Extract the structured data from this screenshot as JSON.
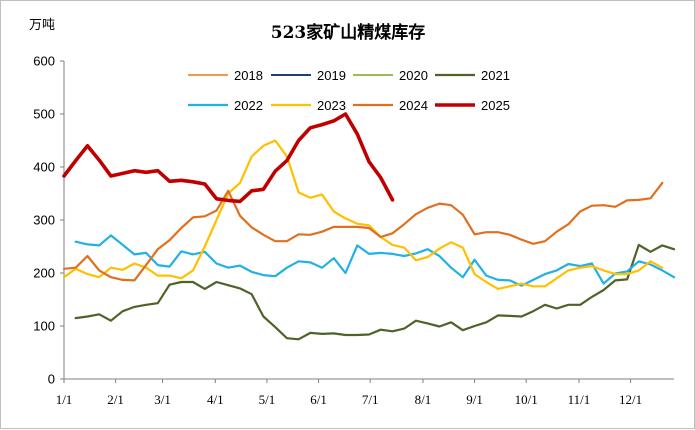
{
  "chart_data": {
    "type": "line",
    "title": "523家矿山精煤库存",
    "ylabel": "万吨",
    "xlabel": "",
    "ylim": [
      0,
      600
    ],
    "yticks": [
      0,
      100,
      200,
      300,
      400,
      500,
      600
    ],
    "xlim": [
      0,
      52
    ],
    "x_tick_labels": [
      "1/1",
      "2/1",
      "3/1",
      "4/1",
      "5/1",
      "6/1",
      "7/1",
      "8/1",
      "9/1",
      "10/1",
      "11/1",
      "12/1"
    ],
    "x_tick_weeks": [
      0,
      4.4,
      8.4,
      12.9,
      17.3,
      21.7,
      26.1,
      30.6,
      35.0,
      39.4,
      43.9,
      48.3
    ],
    "legend_placement": "top-center",
    "grid": false,
    "series": [
      {
        "name": "2018",
        "color": "#f39a4a",
        "width": 2,
        "values": []
      },
      {
        "name": "2019",
        "color": "#1f3d7a",
        "width": 2,
        "values": []
      },
      {
        "name": "2020",
        "color": "#9bbb59",
        "width": 2,
        "values": []
      },
      {
        "name": "2021",
        "color": "#4f6228",
        "width": 2.2,
        "values": [
          [
            1,
            115
          ],
          [
            2,
            118
          ],
          [
            3,
            122
          ],
          [
            4,
            110
          ],
          [
            5,
            128
          ],
          [
            6,
            136
          ],
          [
            7,
            140
          ],
          [
            8,
            143
          ],
          [
            9,
            178
          ],
          [
            10,
            183
          ],
          [
            11,
            183
          ],
          [
            12,
            170
          ],
          [
            13,
            183
          ],
          [
            14,
            177
          ],
          [
            15,
            171
          ],
          [
            16,
            160
          ],
          [
            17,
            118
          ],
          [
            18,
            98
          ],
          [
            19,
            77
          ],
          [
            20,
            75
          ],
          [
            21,
            87
          ],
          [
            22,
            85
          ],
          [
            23,
            86
          ],
          [
            24,
            83
          ],
          [
            25,
            83
          ],
          [
            26,
            84
          ],
          [
            27,
            93
          ],
          [
            28,
            90
          ],
          [
            29,
            95
          ],
          [
            30,
            110
          ],
          [
            31,
            105
          ],
          [
            32,
            99
          ],
          [
            33,
            107
          ],
          [
            34,
            92
          ],
          [
            35,
            100
          ],
          [
            36,
            107
          ],
          [
            37,
            120
          ],
          [
            38,
            119
          ],
          [
            39,
            118
          ],
          [
            40,
            128
          ],
          [
            41,
            140
          ],
          [
            42,
            133
          ],
          [
            43,
            140
          ],
          [
            44,
            140
          ],
          [
            45,
            155
          ],
          [
            46,
            168
          ],
          [
            47,
            186
          ],
          [
            48,
            188
          ],
          [
            49,
            253
          ],
          [
            50,
            240
          ],
          [
            51,
            252
          ],
          [
            52,
            245
          ]
        ]
      },
      {
        "name": "2022",
        "color": "#21b1e6",
        "width": 2.2,
        "values": [
          [
            1,
            259
          ],
          [
            2,
            254
          ],
          [
            3,
            252
          ],
          [
            4,
            271
          ],
          [
            5,
            253
          ],
          [
            6,
            235
          ],
          [
            7,
            238
          ],
          [
            8,
            215
          ],
          [
            9,
            212
          ],
          [
            10,
            241
          ],
          [
            11,
            235
          ],
          [
            12,
            240
          ],
          [
            13,
            218
          ],
          [
            14,
            210
          ],
          [
            15,
            214
          ],
          [
            16,
            202
          ],
          [
            17,
            196
          ],
          [
            18,
            194
          ],
          [
            19,
            210
          ],
          [
            20,
            222
          ],
          [
            21,
            220
          ],
          [
            22,
            210
          ],
          [
            23,
            228
          ],
          [
            24,
            200
          ],
          [
            25,
            252
          ],
          [
            26,
            236
          ],
          [
            27,
            238
          ],
          [
            28,
            236
          ],
          [
            29,
            232
          ],
          [
            30,
            237
          ],
          [
            31,
            245
          ],
          [
            32,
            232
          ],
          [
            33,
            210
          ],
          [
            34,
            192
          ],
          [
            35,
            225
          ],
          [
            36,
            195
          ],
          [
            37,
            187
          ],
          [
            38,
            186
          ],
          [
            39,
            176
          ],
          [
            40,
            187
          ],
          [
            41,
            198
          ],
          [
            42,
            205
          ],
          [
            43,
            217
          ],
          [
            44,
            213
          ],
          [
            45,
            218
          ],
          [
            46,
            180
          ],
          [
            47,
            199
          ],
          [
            48,
            203
          ],
          [
            49,
            222
          ],
          [
            50,
            216
          ],
          [
            51,
            205
          ],
          [
            52,
            192
          ]
        ]
      },
      {
        "name": "2023",
        "color": "#ffc000",
        "width": 2.2,
        "values": [
          [
            0,
            192
          ],
          [
            1,
            208
          ],
          [
            2,
            198
          ],
          [
            3,
            192
          ],
          [
            4,
            210
          ],
          [
            5,
            206
          ],
          [
            6,
            218
          ],
          [
            7,
            210
          ],
          [
            8,
            195
          ],
          [
            9,
            195
          ],
          [
            10,
            190
          ],
          [
            11,
            205
          ],
          [
            12,
            250
          ],
          [
            13,
            300
          ],
          [
            14,
            350
          ],
          [
            15,
            370
          ],
          [
            16,
            420
          ],
          [
            17,
            440
          ],
          [
            18,
            450
          ],
          [
            19,
            420
          ],
          [
            20,
            352
          ],
          [
            21,
            342
          ],
          [
            22,
            348
          ],
          [
            23,
            316
          ],
          [
            24,
            303
          ],
          [
            25,
            293
          ],
          [
            26,
            290
          ],
          [
            27,
            268
          ],
          [
            28,
            253
          ],
          [
            29,
            248
          ],
          [
            30,
            224
          ],
          [
            31,
            230
          ],
          [
            32,
            246
          ],
          [
            33,
            258
          ],
          [
            34,
            248
          ],
          [
            35,
            198
          ],
          [
            36,
            183
          ],
          [
            37,
            170
          ],
          [
            38,
            175
          ],
          [
            39,
            180
          ],
          [
            40,
            175
          ],
          [
            41,
            175
          ],
          [
            42,
            190
          ],
          [
            43,
            205
          ],
          [
            44,
            210
          ],
          [
            45,
            213
          ],
          [
            46,
            205
          ],
          [
            47,
            198
          ],
          [
            48,
            198
          ],
          [
            49,
            205
          ],
          [
            50,
            222
          ],
          [
            51,
            210
          ]
        ]
      },
      {
        "name": "2024",
        "color": "#e0701f",
        "width": 2.2,
        "values": [
          [
            0,
            208
          ],
          [
            1,
            210
          ],
          [
            2,
            232
          ],
          [
            3,
            205
          ],
          [
            4,
            192
          ],
          [
            5,
            187
          ],
          [
            6,
            186
          ],
          [
            7,
            215
          ],
          [
            8,
            245
          ],
          [
            9,
            262
          ],
          [
            10,
            285
          ],
          [
            11,
            305
          ],
          [
            12,
            307
          ],
          [
            13,
            318
          ],
          [
            14,
            355
          ],
          [
            15,
            308
          ],
          [
            16,
            286
          ],
          [
            17,
            272
          ],
          [
            18,
            260
          ],
          [
            19,
            260
          ],
          [
            20,
            273
          ],
          [
            21,
            272
          ],
          [
            22,
            278
          ],
          [
            23,
            287
          ],
          [
            24,
            287
          ],
          [
            25,
            287
          ],
          [
            26,
            285
          ],
          [
            27,
            268
          ],
          [
            28,
            275
          ],
          [
            29,
            292
          ],
          [
            30,
            311
          ],
          [
            31,
            323
          ],
          [
            32,
            331
          ],
          [
            33,
            328
          ],
          [
            34,
            310
          ],
          [
            35,
            273
          ],
          [
            36,
            277
          ],
          [
            37,
            277
          ],
          [
            38,
            272
          ],
          [
            39,
            263
          ],
          [
            40,
            255
          ],
          [
            41,
            260
          ],
          [
            42,
            278
          ],
          [
            43,
            292
          ],
          [
            44,
            316
          ],
          [
            45,
            327
          ],
          [
            46,
            328
          ],
          [
            47,
            325
          ],
          [
            48,
            337
          ],
          [
            49,
            338
          ],
          [
            50,
            341
          ],
          [
            51,
            370
          ]
        ]
      },
      {
        "name": "2025",
        "color": "#c00000",
        "width": 3.6,
        "values": [
          [
            0,
            383
          ],
          [
            1,
            412
          ],
          [
            2,
            440
          ],
          [
            3,
            413
          ],
          [
            4,
            383
          ],
          [
            5,
            388
          ],
          [
            6,
            393
          ],
          [
            7,
            390
          ],
          [
            8,
            393
          ],
          [
            9,
            373
          ],
          [
            10,
            375
          ],
          [
            11,
            372
          ],
          [
            12,
            368
          ],
          [
            13,
            340
          ],
          [
            14,
            337
          ],
          [
            15,
            335
          ],
          [
            16,
            355
          ],
          [
            17,
            358
          ],
          [
            18,
            392
          ],
          [
            19,
            412
          ],
          [
            20,
            450
          ],
          [
            21,
            474
          ],
          [
            22,
            480
          ],
          [
            23,
            487
          ],
          [
            24,
            500
          ],
          [
            25,
            462
          ],
          [
            26,
            410
          ],
          [
            27,
            380
          ],
          [
            28,
            338
          ]
        ]
      }
    ]
  }
}
